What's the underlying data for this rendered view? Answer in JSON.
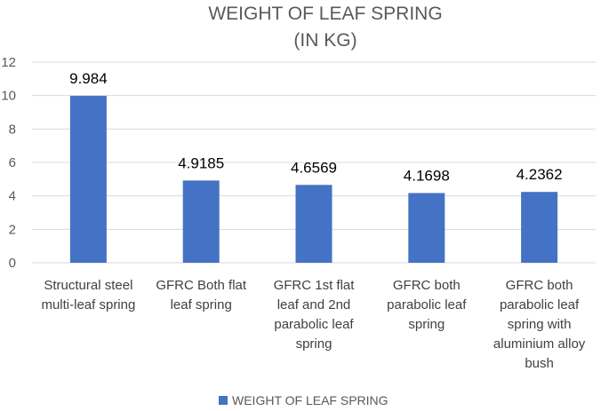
{
  "chart_data": {
    "type": "bar",
    "title": [
      "WEIGHT OF LEAF SPRING",
      "(IN KG)"
    ],
    "categories": [
      [
        "Structural steel",
        "multi-leaf spring"
      ],
      [
        "GFRC Both flat",
        "leaf spring"
      ],
      [
        "GFRC 1st flat",
        "leaf and 2nd",
        "parabolic leaf",
        "spring"
      ],
      [
        "GFRC both",
        "parabolic leaf",
        "spring"
      ],
      [
        "GFRC both",
        "parabolic leaf",
        "spring with",
        "aluminium alloy",
        "bush"
      ]
    ],
    "series": [
      {
        "name": "WEIGHT OF LEAF SPRING",
        "values": [
          9.984,
          4.9185,
          4.6569,
          4.1698,
          4.2362
        ],
        "color": "#4472C4"
      }
    ],
    "data_labels": [
      "9.984",
      "4.9185",
      "4.6569",
      "4.1698",
      "4.2362"
    ],
    "yticks": [
      "0",
      "2",
      "4",
      "6",
      "8",
      "10",
      "12"
    ],
    "ylim": [
      0,
      12
    ],
    "xlabel": "",
    "ylabel": "",
    "grid": true,
    "gridline_color": "#D9D9D9",
    "legend_position": "bottom"
  }
}
